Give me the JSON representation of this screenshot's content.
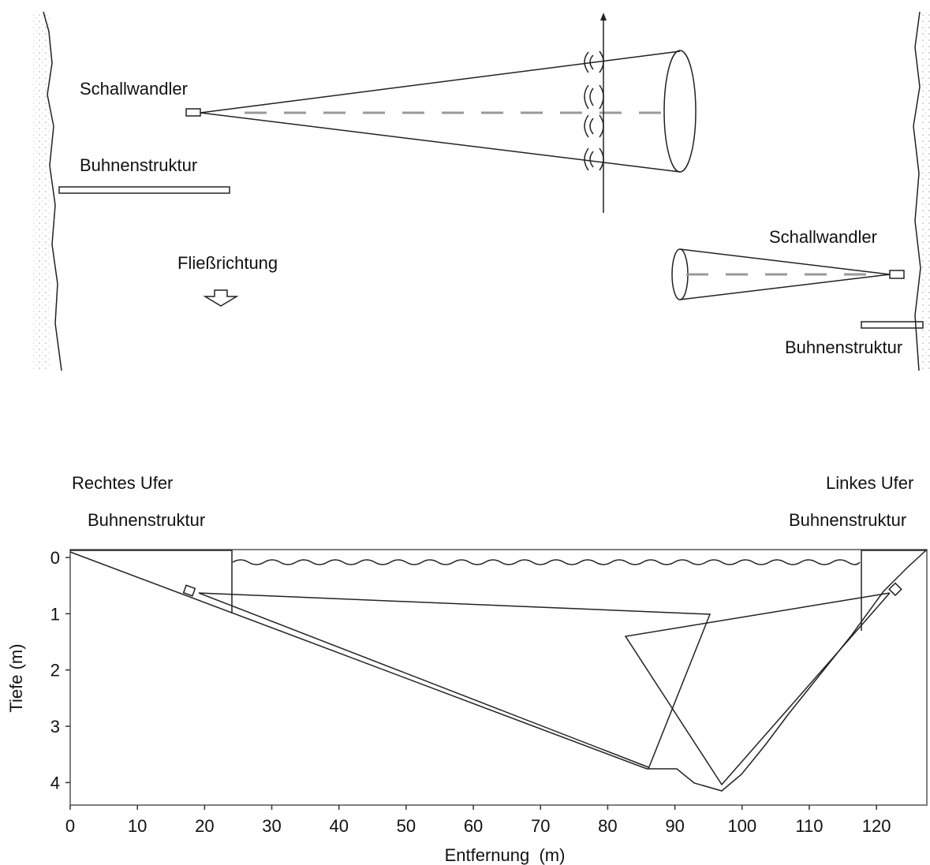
{
  "top_diagram": {
    "left": {
      "transducer_label": "Schallwandler",
      "structure_label": "Buhnenstruktur"
    },
    "flow_label": "Fließrichtung",
    "right": {
      "transducer_label": "Schallwandler",
      "structure_label": "Buhnenstruktur"
    }
  },
  "cross_section": {
    "right_bank_label": "Rechtes Ufer",
    "left_bank_label": "Linkes Ufer",
    "left_structure_label": "Buhnenstruktur",
    "right_structure_label": "Buhnenstruktur",
    "x_label": "Entfernung  (m)",
    "y_label": "Tiefe (m)",
    "xlim": [
      0,
      127.5
    ],
    "ylim": [
      -0.14,
      4.4
    ],
    "y_inverted": true,
    "xticks": [
      0,
      10,
      20,
      30,
      40,
      50,
      60,
      70,
      80,
      90,
      100,
      110,
      120
    ],
    "yticks": [
      0,
      1,
      2,
      3,
      4
    ]
  }
}
